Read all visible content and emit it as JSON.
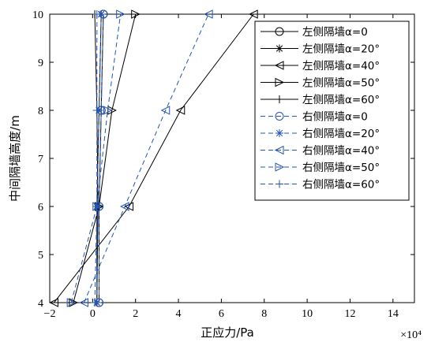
{
  "chart_data": {
    "type": "line",
    "xlabel": "正应力/Pa",
    "ylabel": "中间隔墙高度/m",
    "x_multiplier": "×10⁴",
    "xlim": [
      -2,
      15
    ],
    "ylim": [
      4,
      10
    ],
    "xticks": [
      "−2",
      "0",
      "2",
      "4",
      "6",
      "8",
      "10",
      "12",
      "14"
    ],
    "yticks": [
      "4",
      "5",
      "6",
      "7",
      "8",
      "9",
      "10"
    ],
    "x_tick_values": [
      -2,
      0,
      2,
      4,
      6,
      8,
      10,
      12,
      14
    ],
    "y_tick_values": [
      4,
      5,
      6,
      7,
      8,
      9,
      10
    ],
    "grid": false,
    "legend_position": "top-right",
    "colors": {
      "left": "#000000",
      "right": "#2255b5"
    },
    "series": [
      {
        "name": "左侧隔墙α=0",
        "side": "left",
        "marker": "circle",
        "points": [
          [
            0.3,
            4
          ],
          [
            0.3,
            6
          ],
          [
            0.4,
            8
          ],
          [
            0.5,
            10
          ]
        ]
      },
      {
        "name": "左侧隔墙α=20°",
        "side": "left",
        "marker": "star",
        "points": [
          [
            0.2,
            4
          ],
          [
            0.2,
            6
          ],
          [
            0.3,
            8
          ],
          [
            0.4,
            10
          ]
        ]
      },
      {
        "name": "左侧隔墙α=40°",
        "side": "left",
        "marker": "triangle-left",
        "points": [
          [
            -1.8,
            4
          ],
          [
            1.7,
            6
          ],
          [
            4.1,
            8
          ],
          [
            7.5,
            10
          ]
        ]
      },
      {
        "name": "左侧隔墙α=50°",
        "side": "left",
        "marker": "triangle-right",
        "points": [
          [
            -0.9,
            4
          ],
          [
            0.3,
            6
          ],
          [
            0.9,
            8
          ],
          [
            2.0,
            10
          ]
        ]
      },
      {
        "name": "左侧隔墙α=60°",
        "side": "left",
        "marker": "plus",
        "points": [
          [
            0.2,
            4
          ],
          [
            0.25,
            6
          ],
          [
            0.2,
            8
          ],
          [
            0.1,
            10
          ]
        ]
      },
      {
        "name": "右侧隔墙α=0",
        "side": "right",
        "marker": "circle",
        "points": [
          [
            0.3,
            4
          ],
          [
            0.3,
            6
          ],
          [
            0.4,
            8
          ],
          [
            0.5,
            10
          ]
        ]
      },
      {
        "name": "右侧隔墙α=20°",
        "side": "right",
        "marker": "star",
        "points": [
          [
            0.2,
            4
          ],
          [
            0.2,
            6
          ],
          [
            0.3,
            8
          ],
          [
            0.4,
            10
          ]
        ]
      },
      {
        "name": "右侧隔墙α=40°",
        "side": "right",
        "marker": "triangle-left",
        "points": [
          [
            -0.4,
            4
          ],
          [
            1.5,
            6
          ],
          [
            3.4,
            8
          ],
          [
            5.4,
            10
          ]
        ]
      },
      {
        "name": "右侧隔墙α=50°",
        "side": "right",
        "marker": "triangle-right",
        "points": [
          [
            -1.0,
            4
          ],
          [
            0.2,
            6
          ],
          [
            0.7,
            8
          ],
          [
            1.3,
            10
          ]
        ]
      },
      {
        "name": "右侧隔墙α=60°",
        "side": "right",
        "marker": "plus",
        "points": [
          [
            0.1,
            4
          ],
          [
            0.2,
            6
          ],
          [
            0.2,
            8
          ],
          [
            0.2,
            10
          ]
        ]
      }
    ]
  }
}
